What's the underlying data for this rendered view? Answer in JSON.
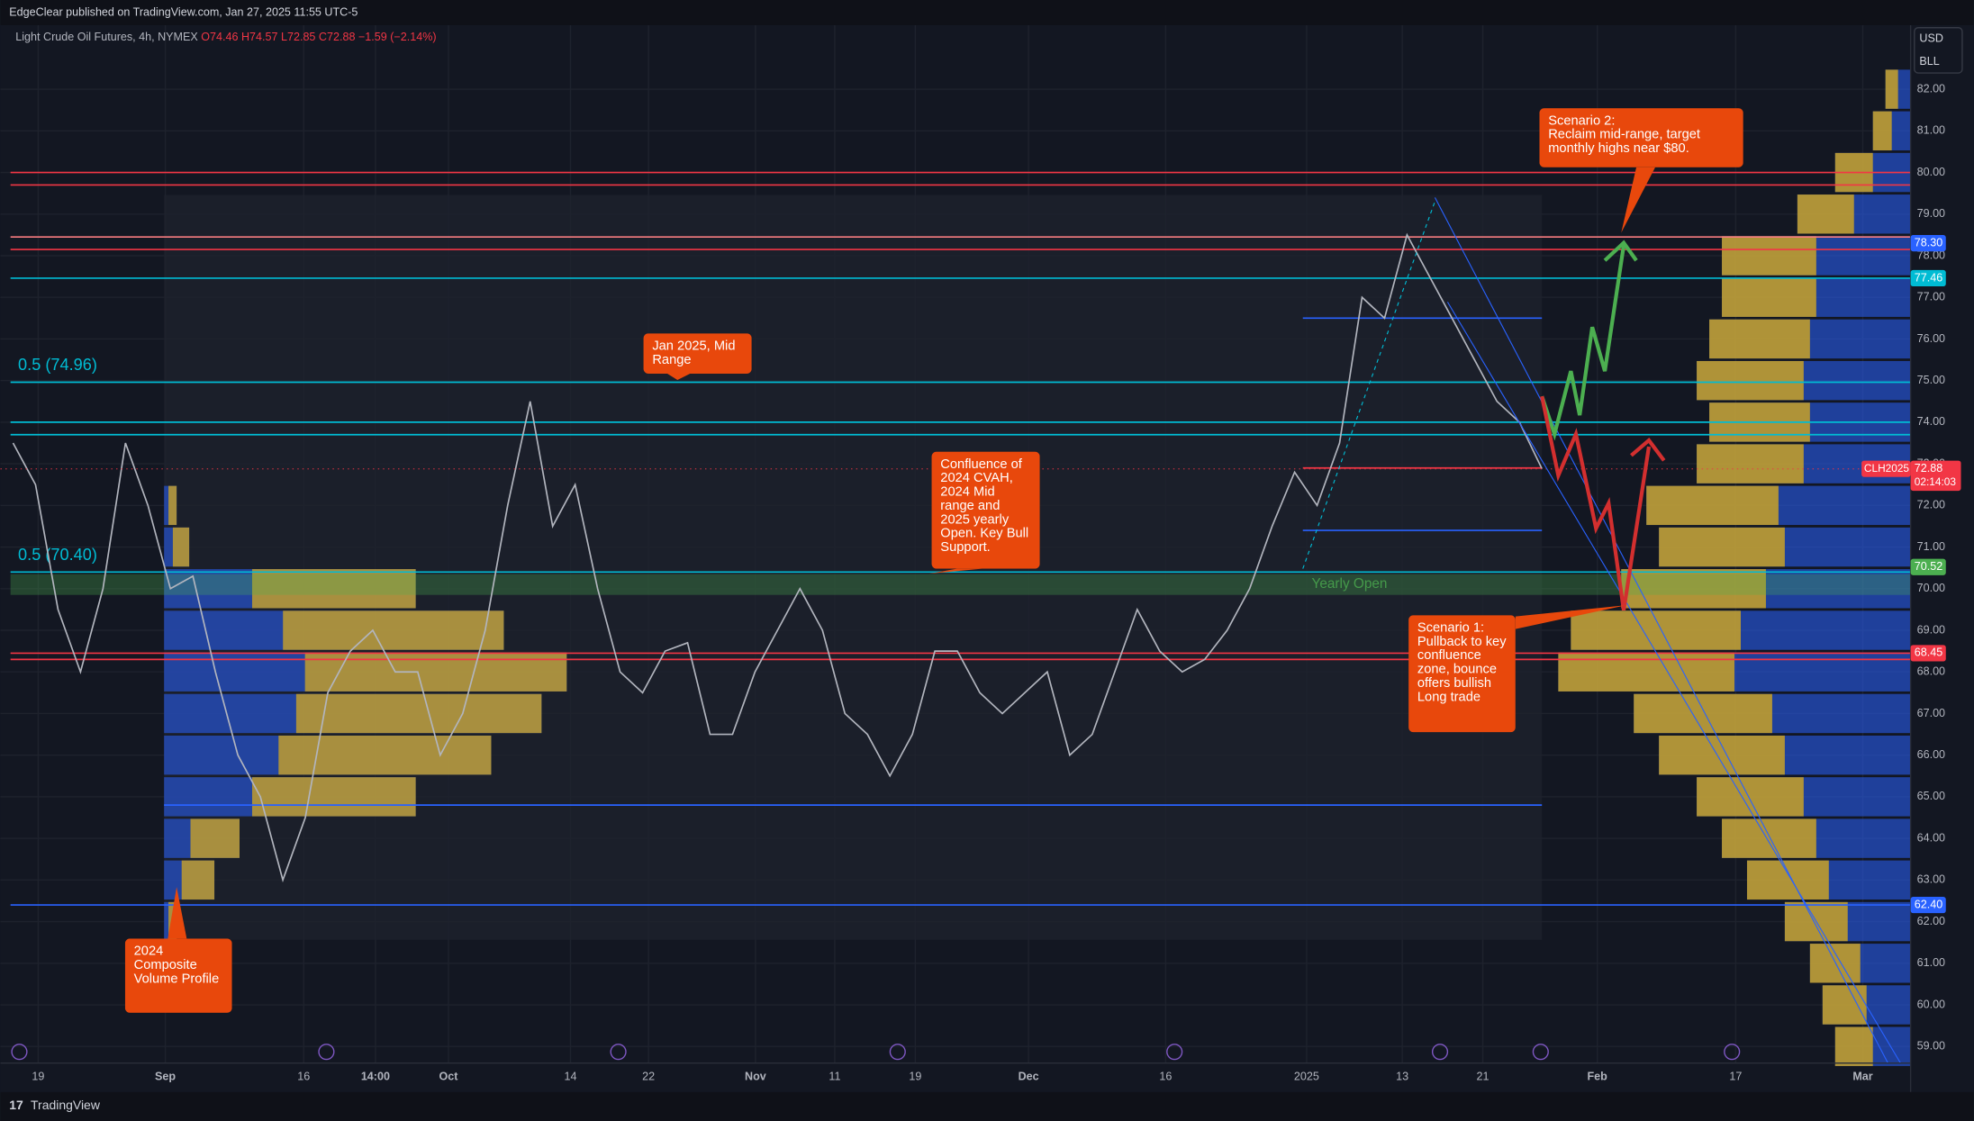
{
  "header": {
    "publisher": "EdgeClear published on TradingView.com, Jan 27, 2025 11:55 UTC-5"
  },
  "legend": {
    "symbol": "Light Crude Oil Futures, 4h, NYMEX",
    "open": "O74.46",
    "high": "H74.57",
    "low": "L72.85",
    "close": "C72.88",
    "change": "−1.59 (−2.14%)"
  },
  "currency": "USD",
  "unit": "BLL",
  "chart_data": {
    "type": "line",
    "color": "#b2b5be",
    "x_labels": [
      "19",
      "Sep",
      "16",
      "14:00",
      "Oct",
      "14",
      "22",
      "Nov",
      "11",
      "19",
      "Dec",
      "16",
      "2025",
      "13",
      "21",
      "Feb",
      "17",
      "Mar"
    ],
    "values": [
      73.5,
      72.5,
      69.5,
      68,
      70,
      73.5,
      72,
      70,
      70.3,
      68,
      66,
      65,
      63,
      64.5,
      67.5,
      68.5,
      69,
      68,
      68,
      66,
      67,
      69,
      72,
      74.5,
      71.5,
      72.5,
      70,
      68,
      67.5,
      68.5,
      68.7,
      66.5,
      66.5,
      68,
      69,
      70,
      69,
      67,
      66.5,
      65.5,
      66.5,
      68.5,
      68.5,
      67.5,
      67,
      67.5,
      68,
      66,
      66.5,
      68,
      69.5,
      68.5,
      68,
      68.3,
      69,
      70,
      71.5,
      72.8,
      72,
      73.5,
      77,
      76.5,
      78.5,
      77.5,
      76.5,
      75.5,
      74.5,
      74,
      72.88
    ],
    "ylim": [
      58.6,
      83.6
    ],
    "yticks": [
      {
        "value": 82,
        "label": "82.00"
      },
      {
        "value": 81,
        "label": "81.00"
      },
      {
        "value": 80,
        "label": "80.00"
      },
      {
        "value": 79,
        "label": "79.00"
      },
      {
        "value": 78,
        "label": "78.00"
      },
      {
        "value": 77,
        "label": "77.00"
      },
      {
        "value": 76,
        "label": "76.00"
      },
      {
        "value": 75,
        "label": "75.00"
      },
      {
        "value": 74,
        "label": "74.00"
      },
      {
        "value": 73,
        "label": "73.00"
      },
      {
        "value": 72,
        "label": "72.00"
      },
      {
        "value": 71,
        "label": "71.00"
      },
      {
        "value": 70,
        "label": "70.00"
      },
      {
        "value": 69,
        "label": "69.00"
      },
      {
        "value": 68,
        "label": "68.00"
      },
      {
        "value": 67,
        "label": "67.00"
      },
      {
        "value": 66,
        "label": "66.00"
      },
      {
        "value": 65,
        "label": "65.00"
      },
      {
        "value": 64,
        "label": "64.00"
      },
      {
        "value": 63,
        "label": "63.00"
      },
      {
        "value": 62,
        "label": "62.00"
      },
      {
        "value": 61,
        "label": "61.00"
      },
      {
        "value": 60,
        "label": "60.00"
      },
      {
        "value": 59,
        "label": "59.00"
      }
    ],
    "grid": true,
    "levels": [
      {
        "value": 80,
        "color": "#f23645"
      },
      {
        "value": 79.7,
        "color": "#f23645"
      },
      {
        "value": 78.45,
        "color": "#f77c80"
      },
      {
        "value": 78.15,
        "color": "#f23645"
      },
      {
        "value": 77.46,
        "color": "#00bcd4"
      },
      {
        "value": 74.96,
        "color": "#00bcd4",
        "label": "0.5 (74.96)"
      },
      {
        "value": 74,
        "color": "#00bcd4"
      },
      {
        "value": 73.7,
        "color": "#00bcd4"
      },
      {
        "value": 76.5,
        "color": "#2962ff"
      },
      {
        "value": 72.9,
        "color": "#f23645"
      },
      {
        "value": 71.4,
        "color": "#2962ff"
      },
      {
        "value": 70.4,
        "color": "#00bcd4",
        "label": "0.5 (70.40)"
      },
      {
        "value": 68.45,
        "color": "#f23645"
      },
      {
        "value": 68.3,
        "color": "#f23645"
      },
      {
        "value": 64.8,
        "color": "#2962ff"
      },
      {
        "value": 62.4,
        "color": "#2962ff"
      }
    ],
    "zones": [
      {
        "from": 69.85,
        "to": 70.35,
        "color": "#4caf50",
        "label": "Yearly Open"
      }
    ],
    "price_labels": [
      {
        "value": 78.3,
        "label": "78.30",
        "color": "#2962ff"
      },
      {
        "value": 77.46,
        "color": "#00bcd4"
      },
      {
        "value": 70.52,
        "color": "#4caf50"
      },
      {
        "value": 68.45,
        "color": "#f23645"
      },
      {
        "value": 62.4,
        "label": "62.40",
        "color": "#2962ff"
      }
    ],
    "last_price": {
      "symbol": "CLH2025",
      "value": 72.88,
      "countdown": "02:14:03",
      "color": "#f23645"
    },
    "volume_profiles": [
      {
        "anchor": "right",
        "prices": [
          82,
          81,
          80,
          79,
          78,
          77,
          76,
          75,
          74,
          73,
          72,
          71,
          70,
          69,
          68,
          67,
          66,
          65,
          64,
          63,
          62,
          61,
          60,
          59
        ],
        "values": [
          20,
          30,
          60,
          90,
          150,
          150,
          160,
          170,
          160,
          170,
          210,
          200,
          230,
          270,
          280,
          220,
          200,
          170,
          150,
          130,
          100,
          80,
          70,
          60
        ]
      },
      {
        "anchor": "left",
        "prices": [
          72,
          71,
          70,
          69,
          68,
          67,
          66,
          65,
          64,
          63,
          62
        ],
        "values": [
          10,
          20,
          200,
          270,
          320,
          300,
          260,
          200,
          60,
          40,
          10
        ]
      }
    ]
  },
  "annotations": [
    "Jan 2025, Mid Range",
    "Confluence of 2024 CVAH, 2024 Mid range and 2025 yearly Open. Key Bull Support.",
    "Scenario 2:\nReclaim mid-range, target monthly highs near $80.",
    "Scenario 1: Pullback to key confluence zone, bounce offers bullish Long trade",
    "2024 Composite Volume Profile"
  ],
  "footer": {
    "brand": "TradingView"
  }
}
